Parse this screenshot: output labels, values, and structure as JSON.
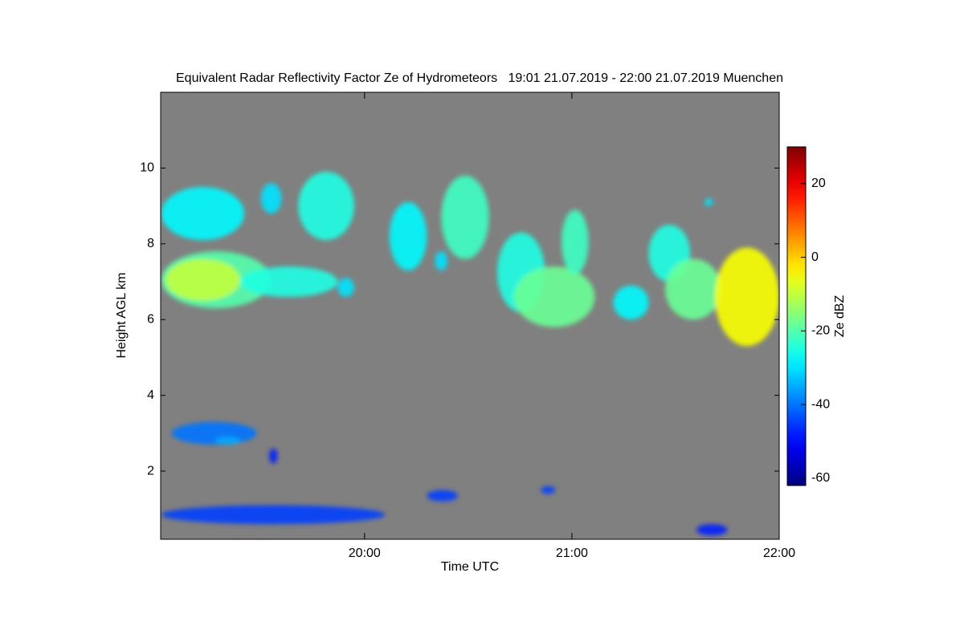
{
  "chart_data": {
    "type": "heatmap",
    "title": "Equivalent Radar Reflectivity Factor Ze of Hydrometeors   19:01 21.07.2019 - 22:00 21.07.2019 Muenchen",
    "x_label": "Time UTC",
    "y_label": "Height AGL km",
    "colorbar_label": "Ze dBZ",
    "colormap": "jet",
    "background": "#808080",
    "xlim": [
      19.0167,
      22
    ],
    "xticks": [
      {
        "value": 20,
        "label": "20:00"
      },
      {
        "value": 21,
        "label": "21:00"
      },
      {
        "value": 22,
        "label": "22:00"
      }
    ],
    "ylim": [
      0.2,
      12
    ],
    "yticks": [
      2,
      4,
      6,
      8,
      10
    ],
    "clim": [
      -62,
      30
    ],
    "cticks": [
      -60,
      -40,
      -20,
      0,
      20
    ],
    "echoes": [
      {
        "x": [
          19.02,
          19.42
        ],
        "y": [
          8.1,
          9.5
        ],
        "value": -28
      },
      {
        "x": [
          19.02,
          19.55
        ],
        "y": [
          6.3,
          7.8
        ],
        "value": -20
      },
      {
        "x": [
          19.04,
          19.4
        ],
        "y": [
          6.5,
          7.6
        ],
        "value": -10
      },
      {
        "x": [
          19.4,
          19.87
        ],
        "y": [
          6.6,
          7.4
        ],
        "value": -25
      },
      {
        "x": [
          19.87,
          19.95
        ],
        "y": [
          6.6,
          7.1
        ],
        "value": -30
      },
      {
        "x": [
          19.5,
          19.6
        ],
        "y": [
          8.8,
          9.6
        ],
        "value": -30
      },
      {
        "x": [
          19.68,
          19.95
        ],
        "y": [
          8.1,
          9.9
        ],
        "value": -25
      },
      {
        "x": [
          20.12,
          20.3
        ],
        "y": [
          7.3,
          9.1
        ],
        "value": -28
      },
      {
        "x": [
          20.37,
          20.6
        ],
        "y": [
          7.6,
          9.8
        ],
        "value": -22
      },
      {
        "x": [
          20.34,
          20.4
        ],
        "y": [
          7.3,
          7.8
        ],
        "value": -30
      },
      {
        "x": [
          20.64,
          20.87
        ],
        "y": [
          6.2,
          8.3
        ],
        "value": -25
      },
      {
        "x": [
          20.72,
          21.11
        ],
        "y": [
          5.8,
          7.4
        ],
        "value": -18
      },
      {
        "x": [
          20.95,
          21.08
        ],
        "y": [
          7.2,
          8.9
        ],
        "value": -22
      },
      {
        "x": [
          21.2,
          21.37
        ],
        "y": [
          6.0,
          6.9
        ],
        "value": -28
      },
      {
        "x": [
          21.37,
          21.57
        ],
        "y": [
          7.0,
          8.5
        ],
        "value": -25
      },
      {
        "x": [
          21.45,
          21.72
        ],
        "y": [
          6.0,
          7.6
        ],
        "value": -18
      },
      {
        "x": [
          21.69,
          22.0
        ],
        "y": [
          5.3,
          7.9
        ],
        "value": -5
      },
      {
        "x": [
          21.64,
          21.68
        ],
        "y": [
          9.0,
          9.2
        ],
        "value": -30
      },
      {
        "x": [
          19.07,
          19.48
        ],
        "y": [
          2.7,
          3.3
        ],
        "value": -40
      },
      {
        "x": [
          19.28,
          19.4
        ],
        "y": [
          2.7,
          2.9
        ],
        "value": -35
      },
      {
        "x": [
          19.54,
          19.58
        ],
        "y": [
          2.2,
          2.6
        ],
        "value": -48
      },
      {
        "x": [
          19.02,
          20.1
        ],
        "y": [
          0.6,
          1.1
        ],
        "value": -45
      },
      {
        "x": [
          20.3,
          20.45
        ],
        "y": [
          1.2,
          1.5
        ],
        "value": -45
      },
      {
        "x": [
          20.85,
          20.92
        ],
        "y": [
          1.4,
          1.6
        ],
        "value": -45
      },
      {
        "x": [
          21.6,
          21.75
        ],
        "y": [
          0.3,
          0.6
        ],
        "value": -48
      }
    ]
  }
}
